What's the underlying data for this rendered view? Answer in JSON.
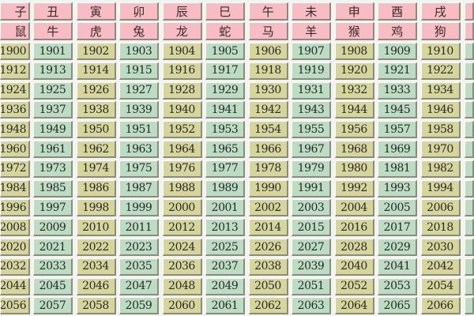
{
  "colors": {
    "header": "#f7bcc4",
    "even_column": "#d6d59c",
    "odd_column": "#bcdcc4"
  },
  "branches": [
    "子",
    "丑",
    "寅",
    "卯",
    "辰",
    "巳",
    "午",
    "未",
    "申",
    "酉",
    "戌"
  ],
  "animals": [
    "鼠",
    "牛",
    "虎",
    "兔",
    "龙",
    "蛇",
    "马",
    "羊",
    "猴",
    "鸡",
    "狗"
  ],
  "rows": [
    [
      "1900",
      "1901",
      "1902",
      "1903",
      "1904",
      "1905",
      "1906",
      "1907",
      "1908",
      "1909",
      "1910"
    ],
    [
      "1912",
      "1913",
      "1914",
      "1915",
      "1916",
      "1917",
      "1918",
      "1919",
      "1920",
      "1921",
      "1922"
    ],
    [
      "1924",
      "1925",
      "1926",
      "1927",
      "1928",
      "1929",
      "1930",
      "1931",
      "1932",
      "1933",
      "1934"
    ],
    [
      "1936",
      "1937",
      "1938",
      "1939",
      "1940",
      "1941",
      "1942",
      "1943",
      "1944",
      "1945",
      "1946"
    ],
    [
      "1948",
      "1949",
      "1950",
      "1951",
      "1952",
      "1953",
      "1954",
      "1955",
      "1956",
      "1957",
      "1958"
    ],
    [
      "1960",
      "1961",
      "1962",
      "1963",
      "1964",
      "1965",
      "1966",
      "1967",
      "1968",
      "1969",
      "1970"
    ],
    [
      "1972",
      "1973",
      "1974",
      "1975",
      "1976",
      "1977",
      "1978",
      "1979",
      "1980",
      "1981",
      "1982"
    ],
    [
      "1984",
      "1985",
      "1986",
      "1987",
      "1988",
      "1989",
      "1990",
      "1991",
      "1992",
      "1993",
      "1994"
    ],
    [
      "1996",
      "1997",
      "1998",
      "1999",
      "2000",
      "2001",
      "2002",
      "2003",
      "2004",
      "2005",
      "2006"
    ],
    [
      "2008",
      "2009",
      "2010",
      "2011",
      "2012",
      "2013",
      "2014",
      "2015",
      "2016",
      "2017",
      "2018"
    ],
    [
      "2020",
      "2021",
      "2022",
      "2023",
      "2024",
      "2025",
      "2026",
      "2027",
      "2028",
      "2029",
      "2030"
    ],
    [
      "2032",
      "2033",
      "2034",
      "2035",
      "2036",
      "2037",
      "2038",
      "2039",
      "2040",
      "2041",
      "2042"
    ],
    [
      "2044",
      "2045",
      "2046",
      "2047",
      "2048",
      "2049",
      "2050",
      "2051",
      "2052",
      "2053",
      "2054"
    ],
    [
      "2056",
      "2057",
      "2058",
      "2059",
      "2060",
      "2061",
      "2062",
      "2063",
      "2064",
      "2065",
      "2066"
    ]
  ]
}
